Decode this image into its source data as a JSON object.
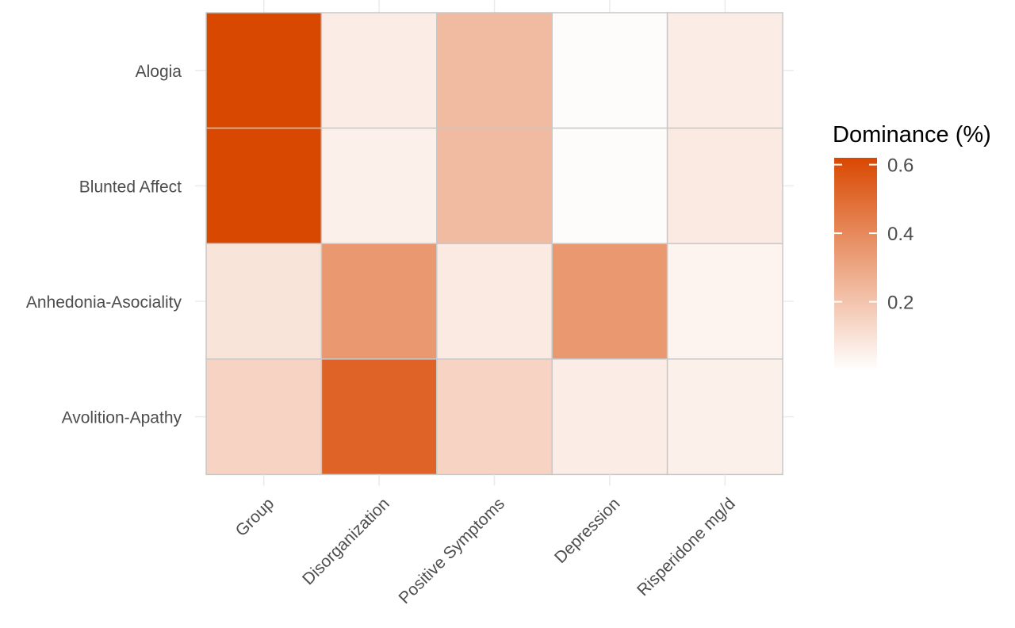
{
  "chart_data": {
    "type": "heatmap",
    "title": "",
    "xlabel": "",
    "ylabel": "",
    "x_categories": [
      "Group",
      "Disorganization",
      "Positive Symptoms",
      "Depression",
      "Risperidone mg/d"
    ],
    "y_categories": [
      "Alogia",
      "Blunted Affect",
      "Anhedonia-Asociality",
      "Avolition-Apathy"
    ],
    "values": [
      [
        0.62,
        0.06,
        0.23,
        0.01,
        0.06
      ],
      [
        0.62,
        0.05,
        0.23,
        0.01,
        0.07
      ],
      [
        0.09,
        0.35,
        0.07,
        0.35,
        0.04
      ],
      [
        0.15,
        0.53,
        0.15,
        0.06,
        0.05
      ]
    ],
    "color_scale": {
      "low": "#ffffff",
      "high": "#d94801",
      "min": 0,
      "max": 0.62
    },
    "legend": {
      "title": "Dominance (%)",
      "ticks": [
        "0.2",
        "0.4",
        "0.6"
      ],
      "tick_values": [
        0.2,
        0.4,
        0.6
      ],
      "placement": "right"
    },
    "grid": true
  }
}
